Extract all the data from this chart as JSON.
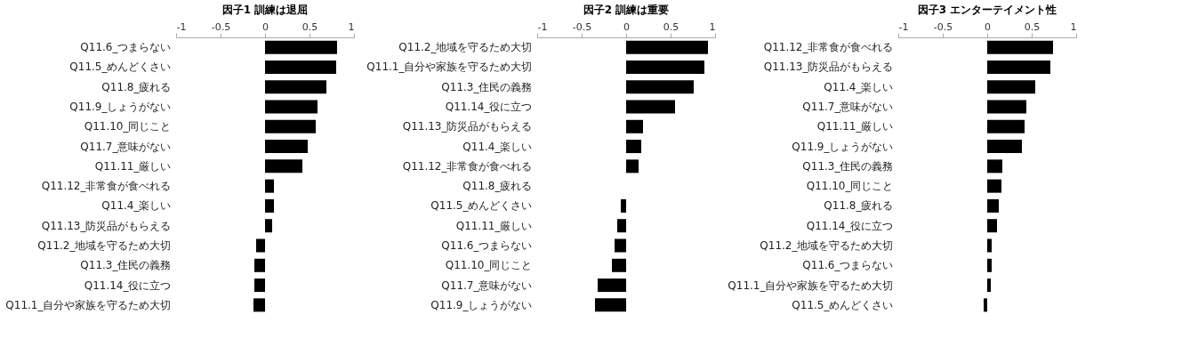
{
  "chart_data": [
    {
      "type": "bar",
      "orientation": "horizontal",
      "title": "因子1 訓練は退屈",
      "color": "#000000",
      "xlim": [
        -1,
        1
      ],
      "xticks": [
        -1,
        -0.5,
        0,
        0.5,
        1
      ],
      "grid": false,
      "categories": [
        "Q11.6_つまらない",
        "Q11.5_めんどくさい",
        "Q11.8_疲れる",
        "Q11.9_しょうがない",
        "Q11.10_同じこと",
        "Q11.7_意味がない",
        "Q11.11_厳しい",
        "Q11.12_非常食が食べれる",
        "Q11.4_楽しい",
        "Q11.13_防災品がもらえる",
        "Q11.2_地域を守るため大切",
        "Q11.3_住民の義務",
        "Q11.14_役に立つ",
        "Q11.1_自分や家族を守るため大切"
      ],
      "values": [
        0.81,
        0.8,
        0.69,
        0.59,
        0.57,
        0.48,
        0.42,
        0.1,
        0.1,
        0.08,
        -0.1,
        -0.12,
        -0.12,
        -0.13
      ]
    },
    {
      "type": "bar",
      "orientation": "horizontal",
      "title": "因子2 訓練は重要",
      "color": "#000000",
      "xlim": [
        -1,
        1
      ],
      "xticks": [
        -1,
        -0.5,
        0,
        0.5,
        1
      ],
      "grid": false,
      "categories": [
        "Q11.2_地域を守るため大切",
        "Q11.1_自分や家族を守るため大切",
        "Q11.3_住民の義務",
        "Q11.14_役に立つ",
        "Q11.13_防災品がもらえる",
        "Q11.4_楽しい",
        "Q11.12_非常食が食べれる",
        "Q11.8_疲れる",
        "Q11.5_めんどくさい",
        "Q11.11_厳しい",
        "Q11.6_つまらない",
        "Q11.10_同じこと",
        "Q11.7_意味がない",
        "Q11.9_しょうがない"
      ],
      "values": [
        0.92,
        0.88,
        0.76,
        0.55,
        0.19,
        0.17,
        0.14,
        0.0,
        -0.06,
        -0.1,
        -0.13,
        -0.16,
        -0.32,
        -0.35
      ]
    },
    {
      "type": "bar",
      "orientation": "horizontal",
      "title": "因子3 エンターテイメント性",
      "color": "#000000",
      "xlim": [
        -1,
        1
      ],
      "xticks": [
        -1,
        -0.5,
        0,
        0.5,
        1
      ],
      "grid": false,
      "categories": [
        "Q11.12_非常食が食べれる",
        "Q11.13_防災品がもらえる",
        "Q11.4_楽しい",
        "Q11.7_意味がない",
        "Q11.11_厳しい",
        "Q11.9_しょうがない",
        "Q11.3_住民の義務",
        "Q11.10_同じこと",
        "Q11.8_疲れる",
        "Q11.14_役に立つ",
        "Q11.2_地域を守るため大切",
        "Q11.6_つまらない",
        "Q11.1_自分や家族を守るため大切",
        "Q11.5_めんどくさい"
      ],
      "values": [
        0.74,
        0.71,
        0.54,
        0.44,
        0.42,
        0.39,
        0.17,
        0.16,
        0.13,
        0.11,
        0.05,
        0.05,
        0.04,
        -0.04
      ]
    }
  ]
}
